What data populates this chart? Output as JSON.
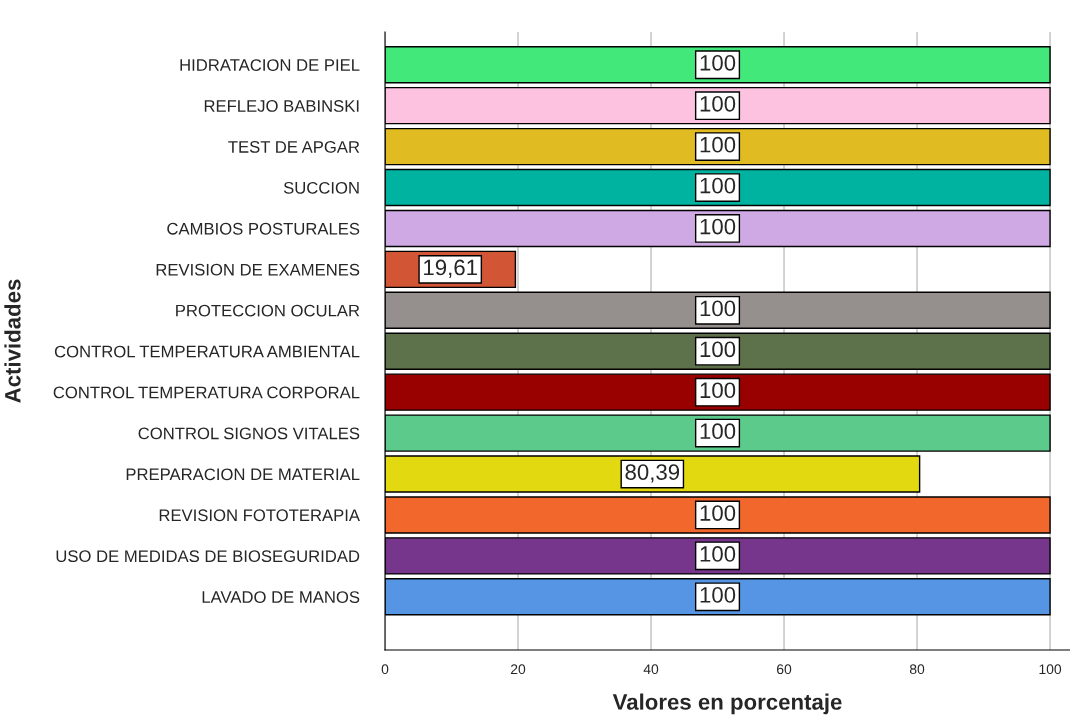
{
  "chart_data": {
    "type": "bar",
    "orientation": "horizontal",
    "xlabel": "Valores en porcentaje",
    "ylabel": "Actividades",
    "categories": [
      "HIDRATACION DE PIEL",
      "REFLEJO BABINSKI",
      "TEST DE APGAR",
      "SUCCION",
      "CAMBIOS POSTURALES",
      "REVISION DE EXAMENES",
      "PROTECCION OCULAR",
      "CONTROL TEMPERATURA AMBIENTAL",
      "CONTROL TEMPERATURA CORPORAL",
      "CONTROL SIGNOS VITALES",
      "PREPARACION DE MATERIAL",
      "REVISION FOTOTERAPIA",
      "USO DE MEDIDAS DE BIOSEGURIDAD",
      "LAVADO DE MANOS"
    ],
    "values": [
      100,
      100,
      100,
      100,
      100,
      19.61,
      100,
      100,
      100,
      100,
      80.39,
      100,
      100,
      100
    ],
    "value_labels": [
      "100",
      "100",
      "100",
      "100",
      "100",
      "19,61",
      "100",
      "100",
      "100",
      "100",
      "80,39",
      "100",
      "100",
      "100"
    ],
    "colors": [
      "#42e97a",
      "#fdc2e0",
      "#e0bb22",
      "#00b3a0",
      "#cfa9e4",
      "#d25536",
      "#958f8d",
      "#5d714a",
      "#990000",
      "#5cca8a",
      "#e2d910",
      "#f2682c",
      "#76368c",
      "#5695e4"
    ],
    "xlim": [
      0,
      103
    ],
    "xticks": [
      0,
      20,
      40,
      60,
      80,
      100
    ],
    "grid": "x"
  }
}
